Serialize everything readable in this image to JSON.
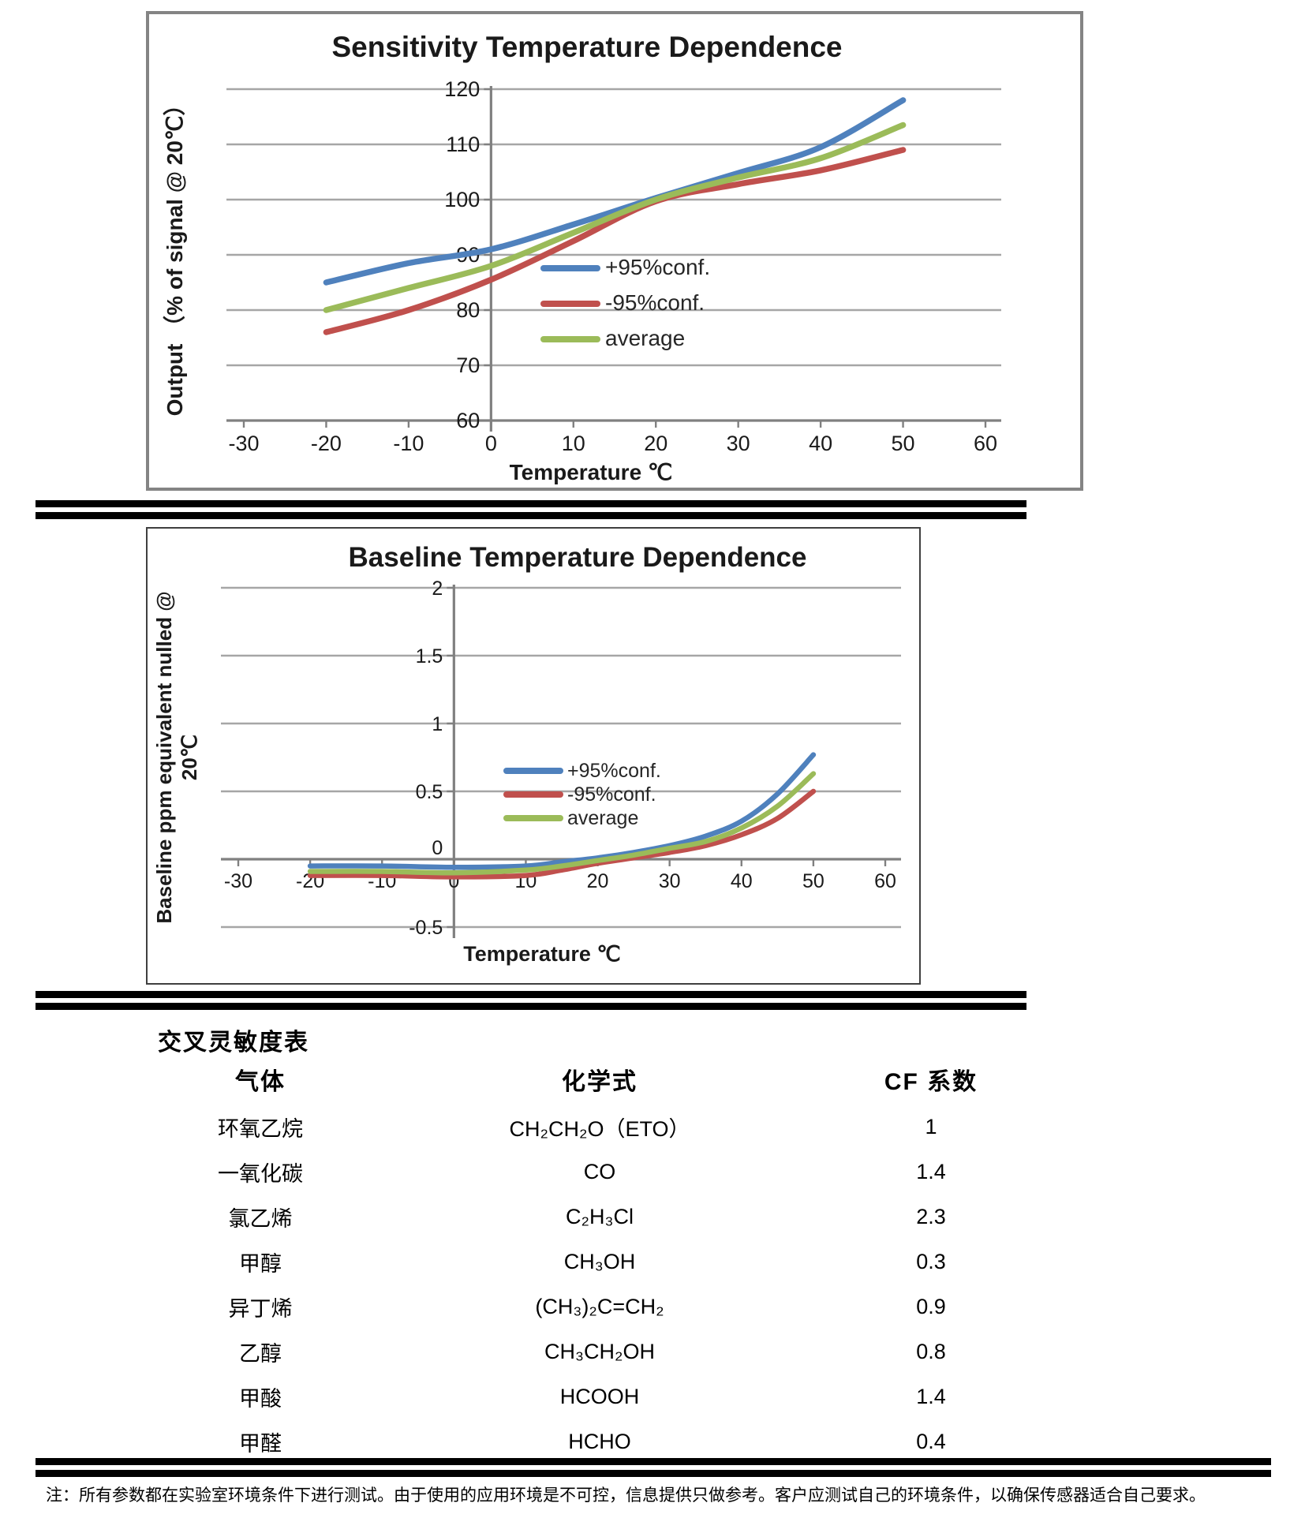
{
  "note": "注：所有参数都在实验室环境条件下进行测试。由于使用的应用环境是不可控，信息提供只做参考。客户应测试自己的环境条件，以确保传感器适合自己要求。",
  "table": {
    "title": "交叉灵敏度表",
    "headers": [
      "气体",
      "化学式",
      "CF 系数"
    ],
    "rows": [
      [
        "环氧乙烷",
        "CH₂CH₂O（ETO）",
        "1"
      ],
      [
        "一氧化碳",
        "CO",
        "1.4"
      ],
      [
        "氯乙烯",
        "C₂H₃Cl",
        "2.3"
      ],
      [
        "甲醇",
        "CH₃OH",
        "0.3"
      ],
      [
        "异丁烯",
        "(CH₃)₂C=CH₂",
        "0.9"
      ],
      [
        "乙醇",
        "CH₃CH₂OH",
        "0.8"
      ],
      [
        "甲酸",
        "HCOOH",
        "1.4"
      ],
      [
        "甲醛",
        "HCHO",
        "0.4"
      ]
    ]
  },
  "chart_data": [
    {
      "type": "line",
      "title": "Sensitivity Temperature Dependence",
      "xlabel": "Temperature ℃",
      "ylabel": "Output （% of signal @ 20℃）",
      "ylabel_lines": [
        "Output （% of signal @ 20℃）"
      ],
      "x_min": -30,
      "x_max": 60,
      "y_min": 60,
      "y_max": 120,
      "x_ticks": [
        -30,
        -20,
        -10,
        0,
        10,
        20,
        30,
        40,
        50,
        60
      ],
      "y_ticks": [
        120,
        110,
        100,
        90,
        80,
        70,
        60
      ],
      "x_axis_at": 60,
      "cross_x": 0,
      "grid": true,
      "legend_position": "inside-right",
      "x": [
        -20,
        -10,
        0,
        10,
        20,
        30,
        40,
        50
      ],
      "series": [
        {
          "name": "+95%conf.",
          "color": "#4F81BD",
          "values": [
            85,
            88.5,
            91,
            95.5,
            100.3,
            104.8,
            109.5,
            118
          ]
        },
        {
          "name": "-95%conf.",
          "color": "#C0504D",
          "values": [
            76,
            80,
            85.5,
            92.5,
            99.7,
            102.8,
            105.3,
            109
          ]
        },
        {
          "name": "average",
          "color": "#9BBB59",
          "values": [
            80,
            84,
            88,
            94,
            100,
            104,
            107.5,
            113.5
          ]
        }
      ]
    },
    {
      "type": "line",
      "title": "Baseline Temperature Dependence",
      "xlabel": "Temperature ℃",
      "ylabel": "Baseline ppm equivalent nulled @ 20℃",
      "ylabel_lines": [
        "Baseline ppm equivalent nulled @",
        "20℃"
      ],
      "x_min": -30,
      "x_max": 60,
      "y_min": -0.5,
      "y_max": 2,
      "x_ticks": [
        -30,
        -20,
        -10,
        0,
        10,
        20,
        30,
        40,
        50,
        60
      ],
      "y_ticks": [
        2,
        1.5,
        1,
        0.5,
        0,
        -0.5
      ],
      "x_axis_at": 0,
      "cross_x": 0,
      "grid": true,
      "legend_position": "inside-right",
      "x": [
        -20,
        -10,
        0,
        10,
        15,
        20,
        25,
        30,
        35,
        40,
        45,
        50
      ],
      "series": [
        {
          "name": "+95%conf.",
          "color": "#4F81BD",
          "values": [
            -0.05,
            -0.05,
            -0.06,
            -0.05,
            -0.02,
            0.01,
            0.05,
            0.1,
            0.17,
            0.28,
            0.48,
            0.77
          ]
        },
        {
          "name": "-95%conf.",
          "color": "#C0504D",
          "values": [
            -0.12,
            -0.12,
            -0.13,
            -0.12,
            -0.08,
            -0.03,
            0.01,
            0.05,
            0.1,
            0.18,
            0.3,
            0.5
          ]
        },
        {
          "name": "average",
          "color": "#9BBB59",
          "values": [
            -0.09,
            -0.09,
            -0.1,
            -0.08,
            -0.05,
            -0.01,
            0.03,
            0.08,
            0.13,
            0.23,
            0.39,
            0.63
          ]
        }
      ]
    }
  ],
  "style": {
    "grid_color": "#A6A6A6",
    "axis_color": "#808080",
    "text_color": "#1a1a1a"
  }
}
